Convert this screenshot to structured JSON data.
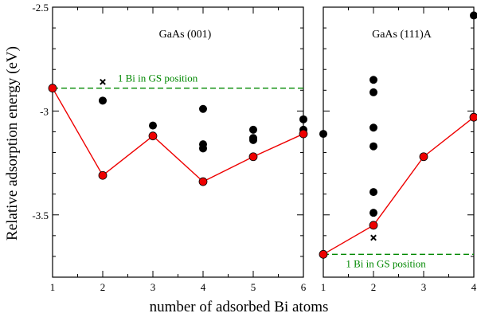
{
  "chart_data": {
    "type": "scatter",
    "ylabel": "Relative adsorption energy (eV)",
    "xlabel": "number of adsorbed Bi atoms",
    "ylim": [
      -3.8,
      -2.5
    ],
    "yticks": [
      -3.5,
      -3,
      -2.5
    ],
    "ytick_labels": [
      "-3.5",
      "-3",
      "-2.5"
    ],
    "colors": {
      "line": "#ee0000",
      "dashed": "#008800",
      "dots": "#000000"
    },
    "panels": [
      {
        "title": "GaAs (001)",
        "xlim": [
          1,
          6
        ],
        "xticks": [
          1,
          2,
          3,
          4,
          5,
          6
        ],
        "xtick_labels": [
          "1",
          "2",
          "3",
          "4",
          "5",
          "6"
        ],
        "annotation": "1 Bi in GS position",
        "annotation_position": "top",
        "gs_level": -2.89,
        "black_points": [
          {
            "x": 1,
            "y": -2.89
          },
          {
            "x": 2,
            "y": -2.95
          },
          {
            "x": 3,
            "y": -3.07
          },
          {
            "x": 4,
            "y": -2.99
          },
          {
            "x": 4,
            "y": -3.16
          },
          {
            "x": 4,
            "y": -3.18
          },
          {
            "x": 4,
            "y": -3.34
          },
          {
            "x": 5,
            "y": -3.09
          },
          {
            "x": 5,
            "y": -3.13
          },
          {
            "x": 5,
            "y": -3.14
          },
          {
            "x": 6,
            "y": -3.04
          },
          {
            "x": 6,
            "y": -3.09
          }
        ],
        "cross_points": [
          {
            "x": 2,
            "y": -2.86
          }
        ],
        "red_line": [
          {
            "x": 1,
            "y": -2.89
          },
          {
            "x": 2,
            "y": -3.31
          },
          {
            "x": 3,
            "y": -3.12
          },
          {
            "x": 4,
            "y": -3.34
          },
          {
            "x": 5,
            "y": -3.22
          },
          {
            "x": 6,
            "y": -3.11
          }
        ]
      },
      {
        "title": "GaAs (111)A",
        "xlim": [
          1,
          4
        ],
        "xticks": [
          1,
          2,
          3,
          4
        ],
        "xtick_labels": [
          "1",
          "2",
          "3",
          "4"
        ],
        "annotation": "1 Bi in GS position",
        "annotation_position": "bottom",
        "gs_level": -3.69,
        "black_points": [
          {
            "x": 1,
            "y": -3.11
          },
          {
            "x": 1,
            "y": -3.69
          },
          {
            "x": 2,
            "y": -2.85
          },
          {
            "x": 2,
            "y": -2.91
          },
          {
            "x": 2,
            "y": -3.08
          },
          {
            "x": 2,
            "y": -3.17
          },
          {
            "x": 2,
            "y": -3.39
          },
          {
            "x": 2,
            "y": -3.49
          },
          {
            "x": 4,
            "y": -2.54
          }
        ],
        "cross_points": [
          {
            "x": 2,
            "y": -3.61
          }
        ],
        "red_line": [
          {
            "x": 1,
            "y": -3.69
          },
          {
            "x": 2,
            "y": -3.55
          },
          {
            "x": 3,
            "y": -3.22
          },
          {
            "x": 4,
            "y": -3.03
          }
        ]
      }
    ]
  }
}
